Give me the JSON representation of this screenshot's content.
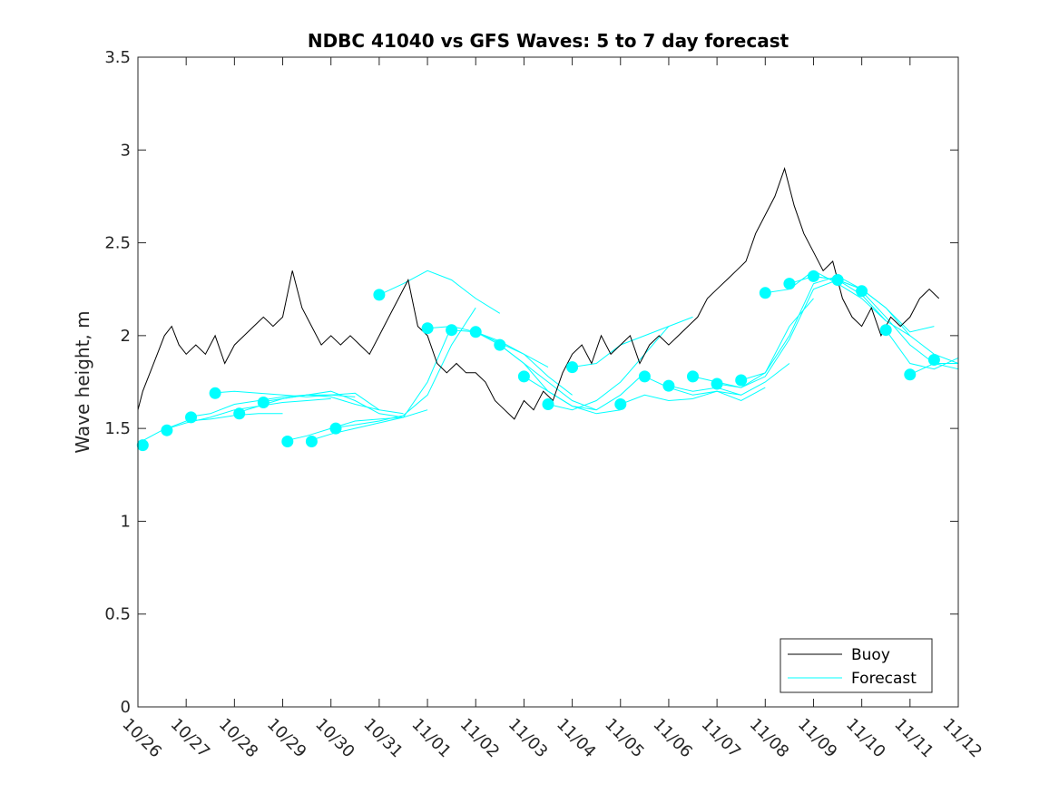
{
  "chart_data": {
    "type": "line",
    "title": "NDBC 41040 vs GFS Waves: 5 to 7 day forecast",
    "xlabel": "",
    "ylabel": "Wave height, m",
    "ylim": [
      0,
      3.5
    ],
    "xlim": [
      0,
      17
    ],
    "x_unit": "days since 10/26 00:00",
    "x_tick_labels": [
      "10/26",
      "10/27",
      "10/28",
      "10/29",
      "10/30",
      "10/31",
      "11/01",
      "11/02",
      "11/03",
      "11/04",
      "11/05",
      "11/06",
      "11/07",
      "11/08",
      "11/09",
      "11/10",
      "11/11",
      "11/12"
    ],
    "y_tick_labels": [
      "0",
      "0.5",
      "1",
      "1.5",
      "2",
      "2.5",
      "3",
      "3.5"
    ],
    "grid": false,
    "legend": {
      "position": "bottom-right",
      "entries": [
        "Buoy",
        "Forecast"
      ]
    },
    "colors": {
      "buoy": "#000000",
      "forecast": "#00ffff",
      "axes": "#262626"
    },
    "series": [
      {
        "name": "Buoy",
        "x": [
          0.0,
          0.1,
          0.25,
          0.4,
          0.55,
          0.7,
          0.85,
          1.0,
          1.2,
          1.4,
          1.6,
          1.8,
          2.0,
          2.2,
          2.4,
          2.6,
          2.8,
          3.0,
          3.2,
          3.4,
          3.6,
          3.8,
          4.0,
          4.2,
          4.4,
          4.6,
          4.8,
          5.0,
          5.2,
          5.4,
          5.6,
          5.8,
          6.0,
          6.2,
          6.4,
          6.6,
          6.8,
          7.0,
          7.2,
          7.4,
          7.6,
          7.8,
          8.0,
          8.2,
          8.4,
          8.6,
          8.8,
          9.0,
          9.2,
          9.4,
          9.6,
          9.8,
          10.0,
          10.2,
          10.4,
          10.6,
          10.8,
          11.0,
          11.2,
          11.4,
          11.6,
          11.8,
          12.0,
          12.2,
          12.4,
          12.6,
          12.8,
          13.0,
          13.2,
          13.4,
          13.6,
          13.8,
          14.0,
          14.2,
          14.4,
          14.6,
          14.8,
          15.0,
          15.2,
          15.4,
          15.6,
          15.8,
          16.0,
          16.2,
          16.4,
          16.6,
          16.8,
          17.0
        ],
        "values": [
          1.6,
          1.7,
          1.8,
          1.9,
          2.0,
          2.05,
          1.95,
          1.9,
          1.95,
          1.9,
          2.0,
          1.85,
          1.95,
          2.0,
          2.05,
          2.1,
          2.05,
          2.1,
          2.35,
          2.15,
          2.05,
          1.95,
          2.0,
          1.95,
          2.0,
          1.95,
          1.9,
          2.0,
          2.1,
          2.2,
          2.3,
          2.05,
          2.0,
          1.85,
          1.8,
          1.85,
          1.8,
          1.8,
          1.75,
          1.65,
          1.6,
          1.55,
          1.65,
          1.6,
          1.7,
          1.65,
          1.8,
          1.9,
          1.95,
          1.85,
          2.0,
          1.9,
          1.95,
          2.0,
          1.85,
          1.95,
          2.0,
          1.95,
          2.0,
          2.05,
          2.1,
          2.2,
          2.25,
          2.3,
          2.35,
          2.4,
          2.55,
          2.65,
          2.75,
          2.9,
          2.7,
          2.55,
          2.45,
          2.35,
          2.4,
          2.2,
          2.1,
          2.05,
          2.15,
          2.0,
          2.1,
          2.05,
          2.1,
          2.2,
          2.25,
          2.2,
          null,
          null
        ]
      },
      {
        "name": "Forecast",
        "segments": [
          {
            "x": [
              0.0,
              0.5,
              1.0,
              1.5,
              2.0,
              2.5,
              3.0
            ],
            "values": [
              1.42,
              1.49,
              1.54,
              1.55,
              1.57,
              1.58,
              1.58
            ]
          },
          {
            "x": [
              0.5,
              1.0,
              1.5,
              2.0,
              2.5,
              3.0,
              3.5,
              4.0
            ],
            "values": [
              1.49,
              1.53,
              1.56,
              1.6,
              1.62,
              1.64,
              1.65,
              1.66
            ]
          },
          {
            "x": [
              1.0,
              1.5,
              2.0,
              2.5,
              3.0,
              3.5,
              4.0,
              4.5
            ],
            "values": [
              1.56,
              1.58,
              1.63,
              1.65,
              1.67,
              1.68,
              1.68,
              1.67
            ]
          },
          {
            "x": [
              1.5,
              2.0,
              2.5,
              3.0,
              3.5,
              4.0,
              4.5,
              5.0
            ],
            "values": [
              1.69,
              1.7,
              1.69,
              1.68,
              1.67,
              1.68,
              1.69,
              1.6
            ]
          },
          {
            "x": [
              2.0,
              2.5,
              3.0,
              3.5,
              4.0,
              4.5,
              5.0,
              5.5
            ],
            "values": [
              1.58,
              1.62,
              1.66,
              1.68,
              1.7,
              1.65,
              1.58,
              1.56
            ]
          },
          {
            "x": [
              2.5,
              3.0,
              3.5,
              4.0,
              4.5,
              5.0,
              5.5
            ],
            "values": [
              1.64,
              1.66,
              1.68,
              1.67,
              1.63,
              1.6,
              1.58
            ]
          },
          {
            "x": [
              3.0,
              3.5,
              4.0,
              4.5,
              5.0,
              5.5,
              6.0
            ],
            "values": [
              1.43,
              1.46,
              1.5,
              1.54,
              1.55,
              1.56,
              1.6
            ]
          },
          {
            "x": [
              3.5,
              4.0,
              4.5,
              5.0,
              5.5,
              6.0,
              6.5
            ],
            "values": [
              1.43,
              1.47,
              1.5,
              1.53,
              1.56,
              1.75,
              2.05
            ]
          },
          {
            "x": [
              4.0,
              4.5,
              5.0,
              5.5,
              6.0,
              6.5,
              7.0
            ],
            "values": [
              1.5,
              1.52,
              1.54,
              1.57,
              1.68,
              1.95,
              2.15
            ]
          },
          {
            "x": [
              5.0,
              5.5,
              6.0,
              6.5,
              7.0,
              7.5
            ],
            "values": [
              2.22,
              2.28,
              2.35,
              2.3,
              2.2,
              2.12
            ]
          },
          {
            "x": [
              6.0,
              6.5,
              7.0,
              7.5,
              8.0,
              8.5
            ],
            "values": [
              2.04,
              2.05,
              2.02,
              1.97,
              1.9,
              1.83
            ]
          },
          {
            "x": [
              6.5,
              7.0,
              7.5,
              8.0,
              8.5,
              9.0
            ],
            "values": [
              2.03,
              2.02,
              1.96,
              1.9,
              1.78,
              1.68
            ]
          },
          {
            "x": [
              7.0,
              7.5,
              8.0,
              8.5,
              9.0,
              9.5
            ],
            "values": [
              2.02,
              1.95,
              1.85,
              1.75,
              1.65,
              1.6
            ]
          },
          {
            "x": [
              7.5,
              8.0,
              8.5,
              9.0,
              9.5,
              10.0
            ],
            "values": [
              1.95,
              1.85,
              1.7,
              1.62,
              1.58,
              1.6
            ]
          },
          {
            "x": [
              8.0,
              8.5,
              9.0,
              9.5,
              10.0,
              10.5
            ],
            "values": [
              1.78,
              1.7,
              1.62,
              1.6,
              1.68,
              1.8
            ]
          },
          {
            "x": [
              8.5,
              9.0,
              9.5,
              10.0,
              10.5,
              11.0
            ],
            "values": [
              1.63,
              1.6,
              1.65,
              1.75,
              1.9,
              2.05
            ]
          },
          {
            "x": [
              9.0,
              9.5,
              10.0,
              10.5,
              11.0,
              11.5
            ],
            "values": [
              1.83,
              1.85,
              1.95,
              2.0,
              2.05,
              2.1
            ]
          },
          {
            "x": [
              10.0,
              10.5,
              11.0,
              11.5,
              12.0,
              12.5
            ],
            "values": [
              1.63,
              1.68,
              1.65,
              1.66,
              1.7,
              1.68
            ]
          },
          {
            "x": [
              10.5,
              11.0,
              11.5,
              12.0,
              12.5,
              13.0
            ],
            "values": [
              1.78,
              1.72,
              1.68,
              1.7,
              1.65,
              1.72
            ]
          },
          {
            "x": [
              11.0,
              11.5,
              12.0,
              12.5,
              13.0,
              13.5
            ],
            "values": [
              1.73,
              1.7,
              1.72,
              1.68,
              1.75,
              1.85
            ]
          },
          {
            "x": [
              11.5,
              12.0,
              12.5,
              13.0,
              13.5,
              14.0
            ],
            "values": [
              1.78,
              1.75,
              1.72,
              1.8,
              2.05,
              2.2
            ]
          },
          {
            "x": [
              12.0,
              12.5,
              13.0,
              13.5,
              14.0,
              14.5
            ],
            "values": [
              1.74,
              1.72,
              1.78,
              1.98,
              2.25,
              2.3
            ]
          },
          {
            "x": [
              12.5,
              13.0,
              13.5,
              14.0,
              14.5,
              15.0
            ],
            "values": [
              1.76,
              1.8,
              2.0,
              2.28,
              2.32,
              2.25
            ]
          },
          {
            "x": [
              13.0,
              13.5,
              14.0,
              14.5,
              15.0,
              15.5
            ],
            "values": [
              2.23,
              2.25,
              2.35,
              2.28,
              2.2,
              2.08
            ]
          },
          {
            "x": [
              13.5,
              14.0,
              14.5,
              15.0,
              15.5,
              16.0
            ],
            "values": [
              2.28,
              2.32,
              2.3,
              2.22,
              2.08,
              2.0
            ]
          },
          {
            "x": [
              14.0,
              14.5,
              15.0,
              15.5,
              16.0,
              16.5
            ],
            "values": [
              2.32,
              2.3,
              2.25,
              2.15,
              2.02,
              2.05
            ]
          },
          {
            "x": [
              14.5,
              15.0,
              15.5,
              16.0,
              16.5,
              17.0
            ],
            "values": [
              2.3,
              2.25,
              2.15,
              2.0,
              1.9,
              1.85
            ]
          },
          {
            "x": [
              15.0,
              15.5,
              16.0,
              16.5,
              17.0
            ],
            "values": [
              2.24,
              2.1,
              1.95,
              1.85,
              1.82
            ]
          },
          {
            "x": [
              15.5,
              16.0,
              16.5,
              17.0
            ],
            "values": [
              2.03,
              1.85,
              1.82,
              1.88
            ]
          },
          {
            "x": [
              16.0,
              16.5,
              17.0
            ],
            "values": [
              1.79,
              1.85,
              1.85
            ]
          }
        ],
        "markers": {
          "x": [
            0.1,
            0.6,
            1.1,
            1.6,
            2.1,
            2.6,
            3.1,
            3.6,
            4.1,
            5.0,
            6.0,
            6.5,
            7.0,
            7.5,
            8.0,
            8.5,
            9.0,
            10.0,
            10.5,
            11.0,
            11.5,
            12.0,
            12.5,
            13.0,
            13.5,
            14.0,
            14.5,
            15.0,
            15.5,
            16.0,
            16.5
          ],
          "values": [
            1.41,
            1.49,
            1.56,
            1.69,
            1.58,
            1.64,
            1.43,
            1.43,
            1.5,
            2.22,
            2.04,
            2.03,
            2.02,
            1.95,
            1.78,
            1.63,
            1.83,
            1.63,
            1.78,
            1.73,
            1.78,
            1.74,
            1.76,
            2.23,
            2.28,
            2.32,
            2.3,
            2.24,
            2.03,
            1.79,
            1.87
          ]
        }
      }
    ]
  }
}
